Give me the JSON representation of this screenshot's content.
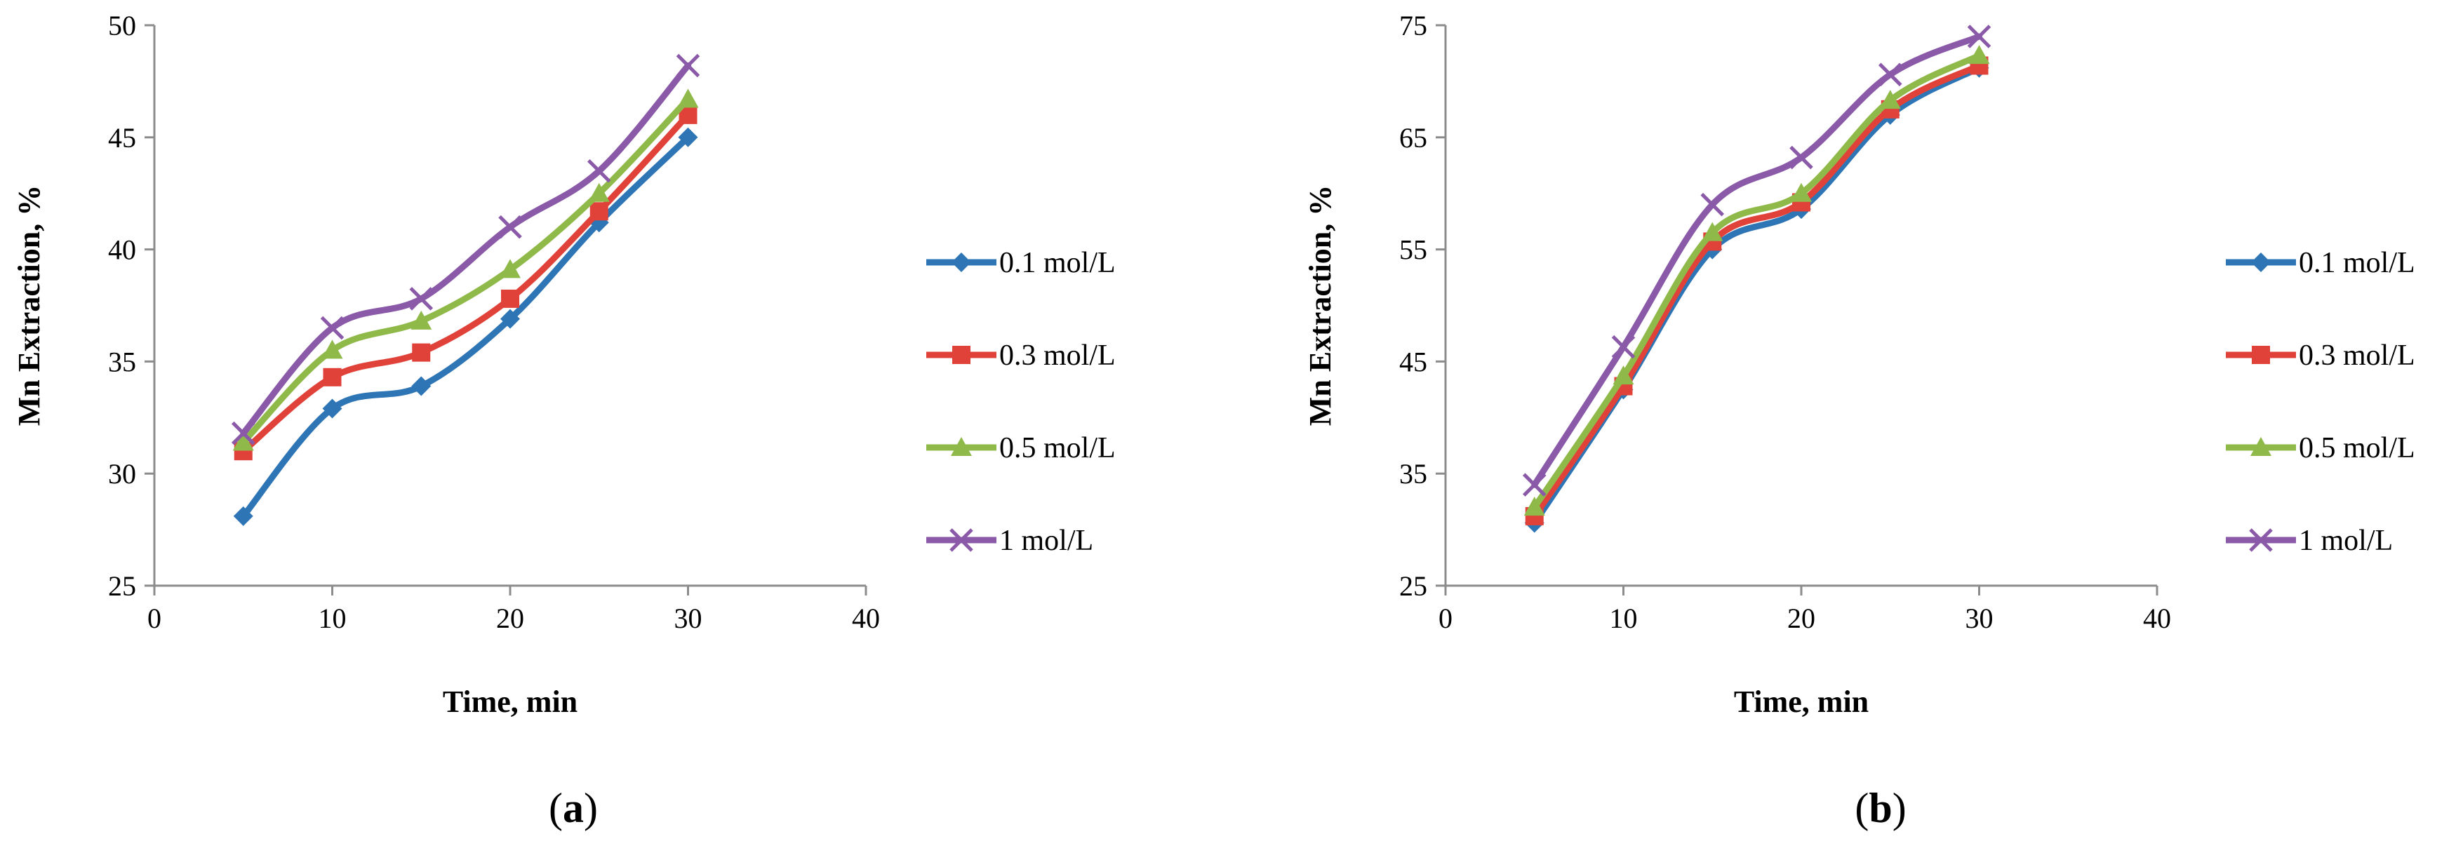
{
  "chart_data": [
    {
      "type": "line",
      "panel_label": "a",
      "title": "",
      "xlabel": "Time, min",
      "ylabel": "Mn Extraction,  %",
      "xlim": [
        0,
        40
      ],
      "ylim": [
        25,
        50
      ],
      "xticks": [
        0,
        10,
        20,
        30,
        40
      ],
      "yticks": [
        25,
        30,
        35,
        40,
        45,
        50
      ],
      "x": [
        5,
        10,
        15,
        20,
        25,
        30
      ],
      "legend_position": "right",
      "series": [
        {
          "name": "0.1 mol/L",
          "marker": "diamond",
          "color": "#2e75b6",
          "values": [
            28.1,
            32.9,
            33.9,
            36.9,
            41.2,
            45.0
          ]
        },
        {
          "name": "0.3 mol/L",
          "marker": "square",
          "color": "#e0423a",
          "values": [
            31.0,
            34.3,
            35.4,
            37.8,
            41.7,
            46.0
          ]
        },
        {
          "name": "0.5 mol/L",
          "marker": "triangle",
          "color": "#8fba4a",
          "values": [
            31.4,
            35.5,
            36.8,
            39.1,
            42.5,
            46.7
          ]
        },
        {
          "name": "1 mol/L",
          "marker": "x",
          "color": "#8a5aa8",
          "values": [
            31.8,
            36.5,
            37.8,
            41.0,
            43.5,
            48.2
          ]
        }
      ]
    },
    {
      "type": "line",
      "panel_label": "b",
      "title": "",
      "xlabel": "Time, min",
      "ylabel": "Mn Extraction,  %",
      "xlim": [
        0,
        40
      ],
      "ylim": [
        25,
        75
      ],
      "xticks": [
        0,
        10,
        20,
        30,
        40
      ],
      "yticks": [
        25,
        35,
        45,
        55,
        65,
        75
      ],
      "x": [
        5,
        10,
        15,
        20,
        25,
        30
      ],
      "legend_position": "right",
      "series": [
        {
          "name": "0.1 mol/L",
          "marker": "diamond",
          "color": "#2e75b6",
          "values": [
            30.6,
            42.5,
            55.0,
            58.6,
            67.0,
            71.2
          ]
        },
        {
          "name": "0.3 mol/L",
          "marker": "square",
          "color": "#e0423a",
          "values": [
            31.2,
            42.8,
            55.7,
            59.2,
            67.5,
            71.4
          ]
        },
        {
          "name": "0.5 mol/L",
          "marker": "triangle",
          "color": "#8fba4a",
          "values": [
            32.0,
            43.7,
            56.5,
            60.0,
            68.3,
            72.3
          ]
        },
        {
          "name": "1 mol/L",
          "marker": "x",
          "color": "#8a5aa8",
          "values": [
            34.0,
            46.3,
            59.0,
            63.2,
            70.6,
            74.0
          ]
        }
      ]
    }
  ]
}
